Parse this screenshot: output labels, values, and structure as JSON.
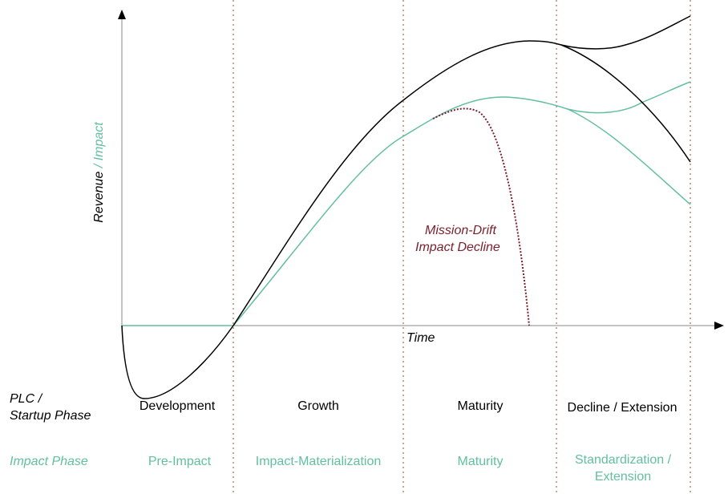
{
  "axes": {
    "x_label": "Time",
    "y_label_revenue": "Revenue",
    "y_label_separator": " / ",
    "y_label_impact": "Impact"
  },
  "annotation": {
    "line1": "Mission-Drift",
    "line2": "Impact Decline"
  },
  "row_labels": {
    "plc_line1": "PLC /",
    "plc_line2": "Startup Phase",
    "impact": "Impact Phase"
  },
  "plc_phases": [
    "Development",
    "Growth",
    "Maturity",
    "Decline / Extension"
  ],
  "impact_phases": [
    "Pre-Impact",
    "Impact-Materialization",
    "Maturity",
    "Standardization /",
    "Extension"
  ],
  "colors": {
    "revenue": "#000000",
    "impact": "#62bfa0",
    "mission_drift": "#7b1f2e",
    "phase_divider": "#c9a89a"
  },
  "legend": {
    "revenue_curve": "Revenue",
    "impact_curve": "Impact",
    "mission_drift_curve": "Mission-Drift"
  }
}
